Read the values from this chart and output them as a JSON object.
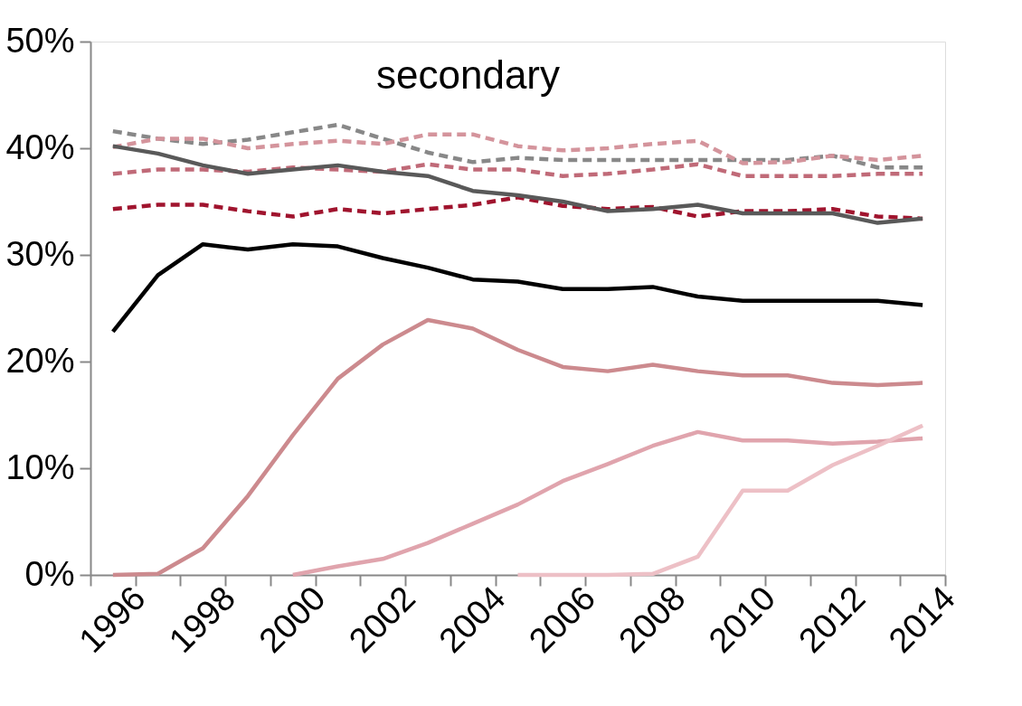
{
  "chart_data": {
    "type": "line",
    "title": "secondary",
    "categories": [
      "1996",
      null,
      "1998",
      null,
      "2000",
      null,
      "2002",
      null,
      "2004",
      null,
      "2006",
      null,
      "2008",
      null,
      "2010",
      null,
      "2012",
      null,
      "2014"
    ],
    "ylim": [
      0,
      50
    ],
    "yticks": [
      {
        "value": 0,
        "label": "0%"
      },
      {
        "value": 10,
        "label": "10%"
      },
      {
        "value": 20,
        "label": "20%"
      },
      {
        "value": 30,
        "label": "30%"
      },
      {
        "value": 40,
        "label": "40%"
      },
      {
        "value": 50,
        "label": "50%"
      }
    ],
    "grid": false,
    "marker": "none",
    "series": [
      {
        "color": "#888888",
        "line_style": "dashed",
        "values": [
          41.6,
          40.9,
          40.4,
          40.8,
          41.5,
          42.2,
          40.9,
          39.6,
          38.7,
          39.1,
          38.9,
          38.9,
          38.9,
          38.9,
          38.9,
          38.9,
          39.3,
          38.2,
          38.2
        ]
      },
      {
        "color": "#d4949c",
        "line_style": "dashed",
        "values": [
          40.1,
          40.9,
          40.9,
          40.0,
          40.4,
          40.7,
          40.4,
          41.3,
          41.3,
          40.2,
          39.8,
          40.0,
          40.4,
          40.7,
          38.6,
          38.7,
          39.3,
          38.9,
          39.3
        ]
      },
      {
        "color": "#c06a78",
        "line_style": "dashed",
        "values": [
          37.6,
          38.0,
          38.0,
          37.8,
          38.2,
          38.0,
          37.8,
          38.5,
          38.0,
          38.0,
          37.4,
          37.6,
          38.0,
          38.5,
          37.4,
          37.4,
          37.4,
          37.6,
          37.6
        ]
      },
      {
        "color": "#a0142e",
        "line_style": "dashed",
        "values": [
          34.3,
          34.7,
          34.7,
          34.1,
          33.6,
          34.3,
          33.9,
          34.3,
          34.7,
          35.4,
          34.6,
          34.3,
          34.5,
          33.6,
          34.1,
          34.1,
          34.3,
          33.6,
          33.4
        ]
      },
      {
        "color": "#595959",
        "line_style": "solid",
        "values": [
          40.2,
          39.5,
          38.4,
          37.6,
          38.0,
          38.4,
          37.8,
          37.4,
          36.0,
          35.6,
          35.0,
          34.1,
          34.3,
          34.7,
          33.9,
          33.9,
          33.9,
          33.0,
          33.4
        ]
      },
      {
        "color": "#000000",
        "line_style": "solid",
        "values": [
          22.8,
          28.1,
          31.0,
          30.5,
          31.0,
          30.8,
          29.7,
          28.8,
          27.7,
          27.5,
          26.8,
          26.8,
          27.0,
          26.1,
          25.7,
          25.7,
          25.7,
          25.7,
          25.3
        ]
      },
      {
        "color": "#cc8a8e",
        "line_style": "solid",
        "values": [
          0,
          0.1,
          2.5,
          7.4,
          13.1,
          18.4,
          21.6,
          23.9,
          23.1,
          21.1,
          19.5,
          19.1,
          19.7,
          19.1,
          18.7,
          18.7,
          18.0,
          17.8,
          18.0
        ]
      },
      {
        "color": "#e0a4ad",
        "line_style": "solid",
        "values": [
          null,
          null,
          null,
          null,
          0,
          0.8,
          1.5,
          3.0,
          4.8,
          6.6,
          8.8,
          10.4,
          12.1,
          13.4,
          12.6,
          12.6,
          12.3,
          12.5,
          12.8
        ]
      },
      {
        "color": "#edc0c6",
        "line_style": "solid",
        "values": [
          null,
          null,
          null,
          null,
          null,
          null,
          null,
          null,
          null,
          0,
          0,
          0,
          0.1,
          1.7,
          7.9,
          7.9,
          10.3,
          12.1,
          14.0
        ]
      }
    ]
  }
}
